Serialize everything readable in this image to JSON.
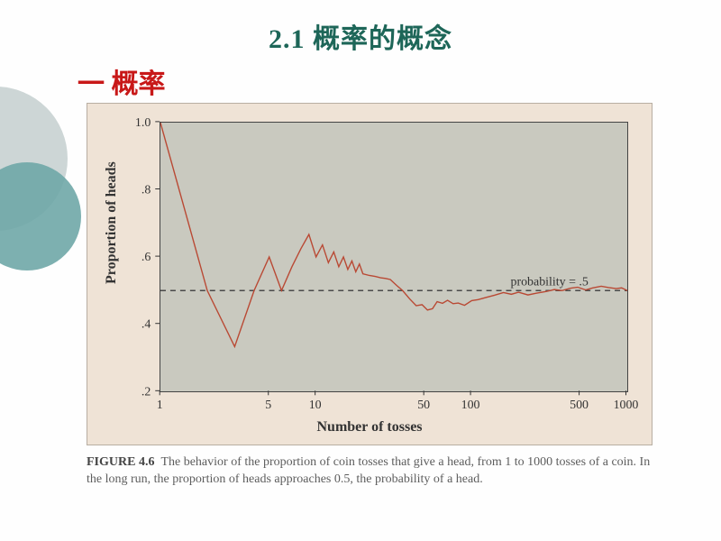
{
  "page_title": "2.1 概率的概念",
  "section_title": "一 概率",
  "chart": {
    "type": "line",
    "x_scale": "log",
    "xlim": [
      1,
      1000
    ],
    "ylim": [
      0.2,
      1.0
    ],
    "x_ticks": [
      1,
      5,
      10,
      50,
      100,
      500,
      1000
    ],
    "y_ticks": [
      0.2,
      0.4,
      0.6,
      0.8,
      1.0
    ],
    "y_tick_labels": [
      ".2",
      ".4",
      ".6",
      ".8",
      "1.0"
    ],
    "reference_line_y": 0.5,
    "reference_line_label": "probability = .5",
    "reference_line_color": "#4a4a4a",
    "reference_line_dash": "6,5",
    "line_color": "#b94934",
    "line_width": 1.4,
    "plot_bg_color": "#c9c9bf",
    "outer_bg_color": "#efe3d6",
    "axis_color": "#444444",
    "tick_font_size": 14,
    "label_font_size": 16,
    "xlabel": "Number of tosses",
    "ylabel": "Proportion of heads",
    "data": [
      [
        1,
        1.0
      ],
      [
        2,
        0.5
      ],
      [
        3,
        0.333
      ],
      [
        4,
        0.5
      ],
      [
        5,
        0.6
      ],
      [
        6,
        0.5
      ],
      [
        7,
        0.571
      ],
      [
        8,
        0.625
      ],
      [
        9,
        0.667
      ],
      [
        10,
        0.6
      ],
      [
        11,
        0.636
      ],
      [
        12,
        0.583
      ],
      [
        13,
        0.615
      ],
      [
        14,
        0.571
      ],
      [
        15,
        0.6
      ],
      [
        16,
        0.563
      ],
      [
        17,
        0.588
      ],
      [
        18,
        0.556
      ],
      [
        19,
        0.579
      ],
      [
        20,
        0.55
      ],
      [
        22,
        0.545
      ],
      [
        24,
        0.542
      ],
      [
        26,
        0.538
      ],
      [
        28,
        0.536
      ],
      [
        30,
        0.533
      ],
      [
        33,
        0.515
      ],
      [
        36,
        0.5
      ],
      [
        40,
        0.475
      ],
      [
        44,
        0.455
      ],
      [
        48,
        0.458
      ],
      [
        52,
        0.442
      ],
      [
        56,
        0.446
      ],
      [
        60,
        0.467
      ],
      [
        65,
        0.462
      ],
      [
        70,
        0.471
      ],
      [
        76,
        0.461
      ],
      [
        82,
        0.463
      ],
      [
        90,
        0.456
      ],
      [
        100,
        0.47
      ],
      [
        110,
        0.473
      ],
      [
        125,
        0.48
      ],
      [
        140,
        0.486
      ],
      [
        160,
        0.494
      ],
      [
        180,
        0.489
      ],
      [
        200,
        0.495
      ],
      [
        230,
        0.487
      ],
      [
        260,
        0.492
      ],
      [
        300,
        0.497
      ],
      [
        340,
        0.503
      ],
      [
        380,
        0.5
      ],
      [
        430,
        0.507
      ],
      [
        480,
        0.51
      ],
      [
        540,
        0.502
      ],
      [
        600,
        0.508
      ],
      [
        680,
        0.513
      ],
      [
        760,
        0.509
      ],
      [
        850,
        0.506
      ],
      [
        920,
        0.508
      ],
      [
        1000,
        0.5
      ]
    ]
  },
  "caption": {
    "label": "FIGURE 4.6",
    "text": "The behavior of the proportion of coin tosses that give a head, from 1 to 1000 tosses of a coin. In the long run, the proportion of heads approaches 0.5, the probability of a head."
  }
}
